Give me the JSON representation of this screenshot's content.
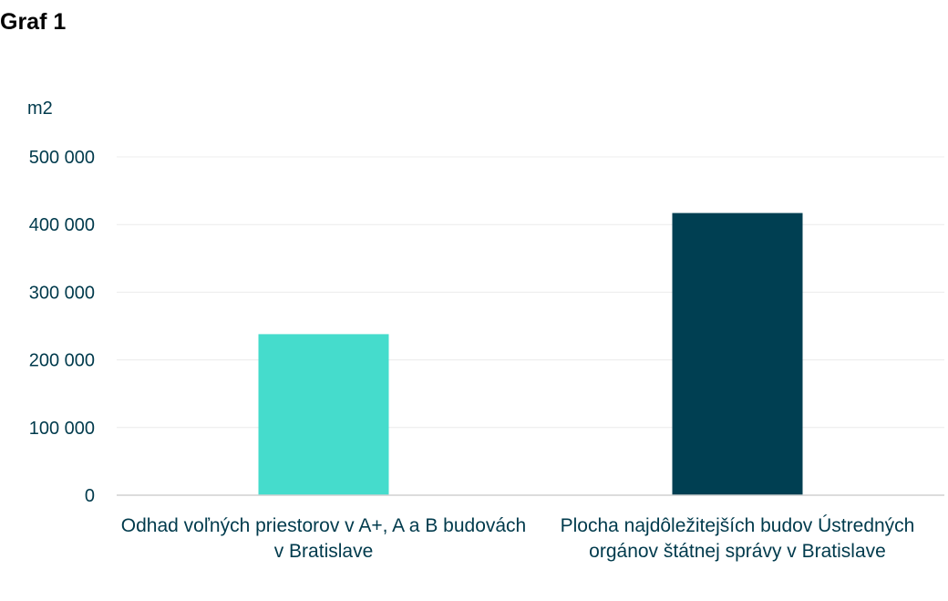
{
  "chart_data": {
    "type": "bar",
    "title": "Graf 1",
    "ylabel": "m2",
    "xlabel": "",
    "categories": [
      "Odhad voľných priestorov v A+, A a B budovách v Bratislave",
      "Plocha najdôležitejších budov Ústredných orgánov štátnej správy v Bratislave"
    ],
    "values": [
      238000,
      417000
    ],
    "colors": [
      "#45dccc",
      "#003f52"
    ],
    "ylim": [
      0,
      500000
    ],
    "yticks": [
      0,
      100000,
      200000,
      300000,
      400000,
      500000
    ],
    "ytick_labels": [
      "0",
      "100 000",
      "200 000",
      "300 000",
      "400 000",
      "500 000"
    ],
    "grid": true,
    "legend": "none"
  }
}
